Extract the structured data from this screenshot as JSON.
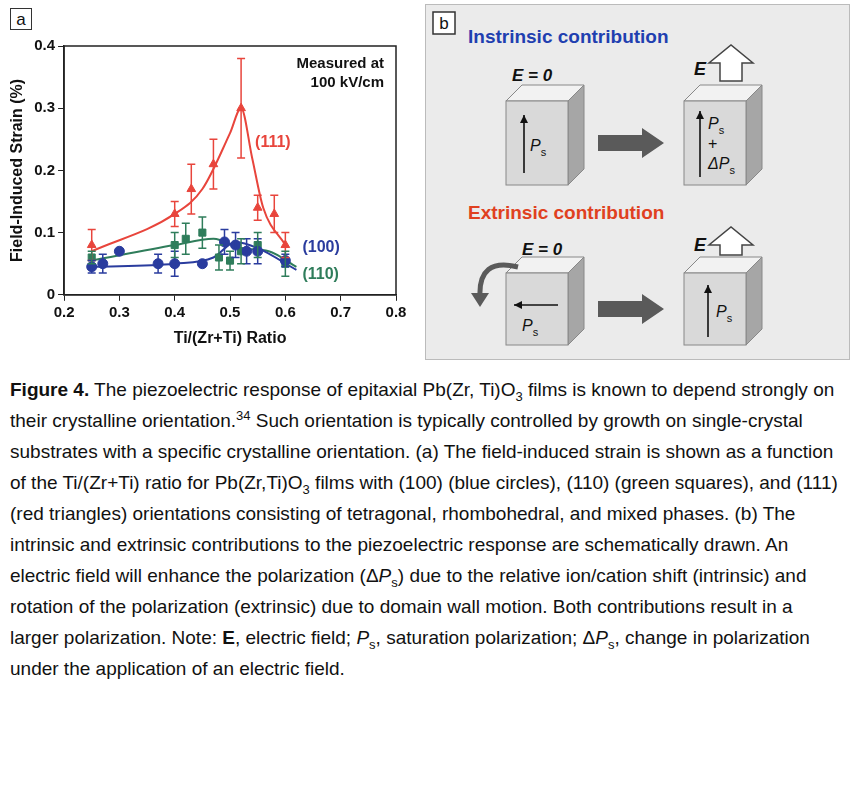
{
  "figure": {
    "panel_letters": [
      "a",
      "b"
    ]
  },
  "chart_data": {
    "type": "scatter",
    "x_label": "Ti/(Zr+Ti) Ratio",
    "y_label": "Field-Induced Strain (%)",
    "annotation": [
      "Measured at",
      "100 kV/cm"
    ],
    "xlim": [
      0.2,
      0.8
    ],
    "xticks": [
      0.2,
      0.3,
      0.4,
      0.5,
      0.6,
      0.7,
      0.8
    ],
    "ylim": [
      0,
      0.4
    ],
    "yticks": [
      0,
      0.1,
      0.2,
      0.3,
      0.4
    ],
    "grid": false,
    "series": [
      {
        "name": "(111)",
        "color": "#e8453c",
        "marker": "triangle",
        "x": [
          0.25,
          0.4,
          0.43,
          0.47,
          0.52,
          0.55,
          0.58,
          0.6
        ],
        "values": [
          0.08,
          0.13,
          0.17,
          0.21,
          0.3,
          0.14,
          0.13,
          0.08
        ],
        "errors": [
          0.025,
          0.02,
          0.04,
          0.04,
          0.08,
          0.02,
          0.03,
          0.02
        ],
        "fit": {
          "x": [
            0.25,
            0.4,
            0.45,
            0.5,
            0.52,
            0.54,
            0.56,
            0.6
          ],
          "values": [
            0.07,
            0.13,
            0.17,
            0.26,
            0.3,
            0.22,
            0.14,
            0.08
          ]
        }
      },
      {
        "name": "(100)",
        "color": "#2a3c9e",
        "marker": "circle",
        "x": [
          0.25,
          0.27,
          0.3,
          0.37,
          0.4,
          0.45,
          0.49,
          0.51,
          0.53,
          0.55,
          0.6
        ],
        "values": [
          0.045,
          0.05,
          0.07,
          0.05,
          0.05,
          0.05,
          0.085,
          0.08,
          0.07,
          0.07,
          0.055
        ],
        "errors": [
          0.01,
          0.015,
          null,
          0.015,
          0.02,
          null,
          0.02,
          0.02,
          0.02,
          0.02,
          0.01
        ],
        "fit": {
          "x": [
            0.25,
            0.4,
            0.47,
            0.51,
            0.55,
            0.62
          ],
          "values": [
            0.045,
            0.05,
            0.06,
            0.085,
            0.075,
            0.04
          ]
        }
      },
      {
        "name": "(110)",
        "color": "#2f7d5b",
        "marker": "square",
        "x": [
          0.25,
          0.4,
          0.42,
          0.45,
          0.48,
          0.5,
          0.52,
          0.55,
          0.6
        ],
        "values": [
          0.06,
          0.08,
          0.09,
          0.1,
          0.06,
          0.055,
          0.07,
          0.08,
          0.05
        ],
        "errors": [
          0.01,
          0.02,
          0.025,
          0.025,
          0.02,
          0.015,
          0.02,
          0.02,
          0.02
        ],
        "fit": {
          "x": [
            0.25,
            0.4,
            0.47,
            0.52,
            0.57,
            0.62
          ],
          "values": [
            0.055,
            0.08,
            0.09,
            0.075,
            0.07,
            0.045
          ]
        }
      }
    ]
  },
  "panel_b": {
    "intrinsic": {
      "title": "Instrinsic contribution",
      "field_off": "E = 0",
      "field_on": "E",
      "polarization_before": [
        {
          "symbol": "P",
          "subscript": "s"
        }
      ],
      "polarization_after": [
        {
          "symbol": "P",
          "subscript": "s"
        },
        {
          "symbol": "+"
        },
        {
          "symbol": "ΔP",
          "subscript": "s"
        }
      ]
    },
    "extrinsic": {
      "title": "Extrinsic contribution",
      "field_off": "E = 0",
      "field_on": "E",
      "polarization_before": [
        {
          "symbol": "P",
          "subscript": "s"
        }
      ],
      "polarization_after": [
        {
          "symbol": "P",
          "subscript": "s"
        }
      ]
    }
  },
  "caption": [
    {
      "text": "Figure 4.",
      "style": "bold"
    },
    {
      "text": " The piezoelectric response of epitaxial Pb(Zr, Ti)O",
      "style": "plain"
    },
    {
      "text": "3",
      "style": "sub"
    },
    {
      "text": " films is known to depend strongly on their crystalline orientation.",
      "style": "plain"
    },
    {
      "text": "34",
      "style": "sup"
    },
    {
      "text": " Such orientation is typically controlled by growth on single-crystal substrates with a specific crystalline orientation. (a) The field-induced strain is shown as a function of the Ti/(Zr+Ti) ratio for Pb(Zr,Ti)O",
      "style": "plain"
    },
    {
      "text": "3",
      "style": "sub"
    },
    {
      "text": " films with (100) (blue circles), (110) (green squares), and (111) (red triangles) orientations consisting of tetragonal, rhombohedral, and mixed phases. (b) The intrinsic and extrinsic contributions to the piezoelectric response are schematically drawn. An electric field will enhance the polarization (Δ",
      "style": "plain"
    },
    {
      "text": "P",
      "style": "italic"
    },
    {
      "text": "s",
      "style": "sub"
    },
    {
      "text": ") due to the relative ion/cation shift (intrinsic) and rotation of the polarization (extrinsic) due to domain wall motion. Both contributions result in a larger polarization. Note: ",
      "style": "plain"
    },
    {
      "text": "E",
      "style": "bold"
    },
    {
      "text": ", electric field; ",
      "style": "plain"
    },
    {
      "text": "P",
      "style": "italic"
    },
    {
      "text": "s",
      "style": "sub"
    },
    {
      "text": ", saturation polarization; Δ",
      "style": "plain"
    },
    {
      "text": "P",
      "style": "italic"
    },
    {
      "text": "s",
      "style": "sub"
    },
    {
      "text": ", change in polarization under the application of an electric field.",
      "style": "plain"
    }
  ]
}
